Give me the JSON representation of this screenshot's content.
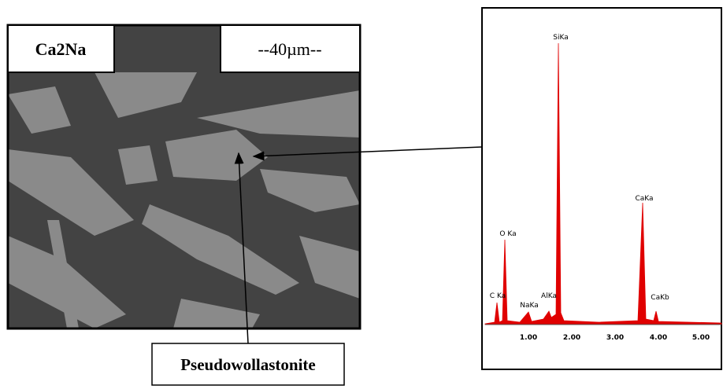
{
  "sem_image": {
    "sample_label": "Ca2Na",
    "scale_label": "--40µm--"
  },
  "callout": {
    "label": "Pseudowollastonite"
  },
  "spectrum": {
    "peaks": [
      "SiKa",
      "CaKa",
      "O Ka",
      "C Ka",
      "NaKa",
      "AlKa",
      "CaKb"
    ],
    "xticks": [
      "1.00",
      "2.00",
      "3.00",
      "4.00",
      "5.00"
    ]
  }
}
